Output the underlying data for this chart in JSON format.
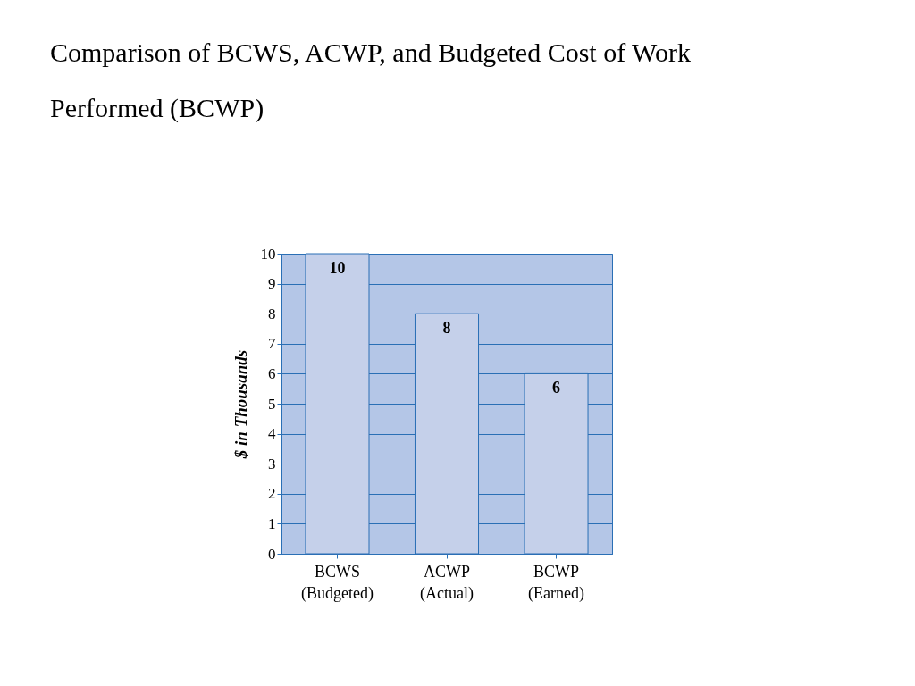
{
  "chart_data": {
    "type": "bar",
    "title": "Comparison of BCWS, ACWP, and Budgeted Cost of Work Performed (BCWP)",
    "ylabel": "$ in Thousands",
    "categories": [
      "BCWS (Budgeted)",
      "ACWP (Actual)",
      "BCWP (Earned)"
    ],
    "values": [
      10,
      8,
      6
    ],
    "color": "#c5d0ea",
    "ylim": [
      0,
      10
    ],
    "yticks": [
      0,
      1,
      2,
      3,
      4,
      5,
      6,
      7,
      8,
      9,
      10
    ],
    "grid": "y",
    "data_labels": true
  }
}
